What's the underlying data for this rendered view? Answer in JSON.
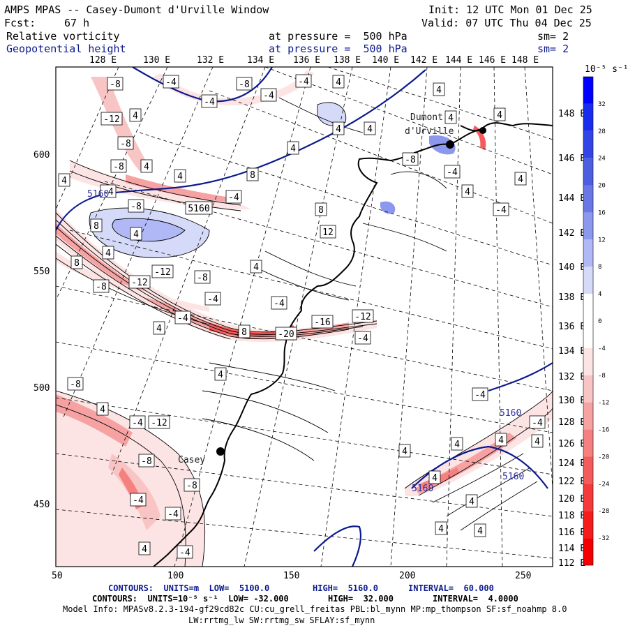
{
  "header": {
    "title": "AMPS MPAS -- Casey-Dumont d'Urville Window",
    "init": "Init: 12 UTC Mon 01 Dec 25",
    "fcst_label": "Fcst:",
    "fcst_value": "67 h",
    "valid": "Valid: 07 UTC Thu 04 Dec 25",
    "field1": {
      "name": "Relative vorticity",
      "level": "at pressure =  500 hPa",
      "sm": "sm= 2"
    },
    "field2": {
      "name": "Geopotential height",
      "level": "at pressure =  500 hPa",
      "sm": "sm= 2"
    }
  },
  "axes": {
    "top_lon_labels": [
      "128 E",
      "130 E",
      "132 E",
      "134 E",
      "136 E",
      "138 E",
      "140 E",
      "142 E",
      "144 E",
      "146 E",
      "148 E"
    ],
    "right_lon_labels": [
      "148 E",
      "146 E",
      "144 E",
      "142 E",
      "140 E",
      "138 E",
      "136 E",
      "134 E",
      "132 E",
      "130 E",
      "128 E",
      "126 E",
      "124 E",
      "122 E",
      "120 E",
      "118 E",
      "116 E",
      "114 E",
      "112 E"
    ],
    "y_ticks": [
      "600",
      "550",
      "500",
      "450"
    ],
    "x_ticks": [
      "50",
      "100",
      "150",
      "200",
      "250"
    ]
  },
  "colorbar": {
    "unit_label": "10⁻⁵ s⁻¹",
    "labels": [
      "32",
      "28",
      "24",
      "20",
      "16",
      "12",
      "8",
      "4",
      "0",
      "-4",
      "-8",
      "-12",
      "-16",
      "-20",
      "-24",
      "-28",
      "-32"
    ],
    "colors_top_to_bottom": [
      "#0000ff",
      "#1a2bf0",
      "#3344e6",
      "#4d5ee0",
      "#6a78e6",
      "#8c98ee",
      "#b0b8f5",
      "#d6daf9",
      "#ffffff",
      "#ffffff",
      "#fde4e4",
      "#f9c4c4",
      "#f6a2a2",
      "#f48080",
      "#f45c5c",
      "#f43a3a",
      "#f41c1c",
      "#f40000"
    ]
  },
  "places": [
    {
      "name": "Dumont",
      "name2": "d'Urville"
    },
    {
      "name": "Casey"
    }
  ],
  "contour_labels": {
    "vorticity": [
      "-8",
      "-4",
      "-8",
      "-4",
      "4",
      "-12",
      "4",
      "-8",
      "-4",
      "-4",
      "-8",
      "4",
      "4",
      "-8",
      "-4",
      "4",
      "-4",
      "5160",
      "8",
      "4",
      "4",
      "8",
      "8",
      "12",
      "4",
      "8",
      "-12",
      "-12",
      "4",
      "-8",
      "-8",
      "-4",
      "-4",
      "4",
      "-4",
      "8",
      "-20",
      "-16",
      "-12",
      "-4",
      "4",
      "4",
      "4",
      "4",
      "4",
      "-8",
      "-4",
      "4",
      "4",
      "-4",
      "-8",
      "4",
      "-4",
      "-12",
      "-8",
      "-8",
      "-4",
      "-4",
      "4",
      "-4",
      "4",
      "4",
      "4",
      "4",
      "4",
      "4",
      "4",
      "4",
      "-4",
      "-4",
      "4"
    ],
    "height": [
      "5160",
      "5160",
      "5160",
      "5160"
    ]
  },
  "footer": {
    "line1_left": "CONTOURS:  UNITS=m  LOW=  5100.0",
    "line1_mid": "HIGH=  5160.0",
    "line1_right": "INTERVAL=  60.000",
    "line2_left": "CONTOURS:  UNITS=10⁻⁵ s⁻¹  LOW= -32.000",
    "line2_mid": "HIGH=  32.000",
    "line2_right": "INTERVAL=  4.0000",
    "line3": "Model Info: MPASv8.2.3-194-gf29cd82c CU:cu_grell_freitas PBL:bl_mynn MP:mp_thompson SF:sf_noahmp 8.0",
    "line4": "LW:rrtmg_lw SW:rrtmg_sw SFLAY:sf_mynn"
  }
}
